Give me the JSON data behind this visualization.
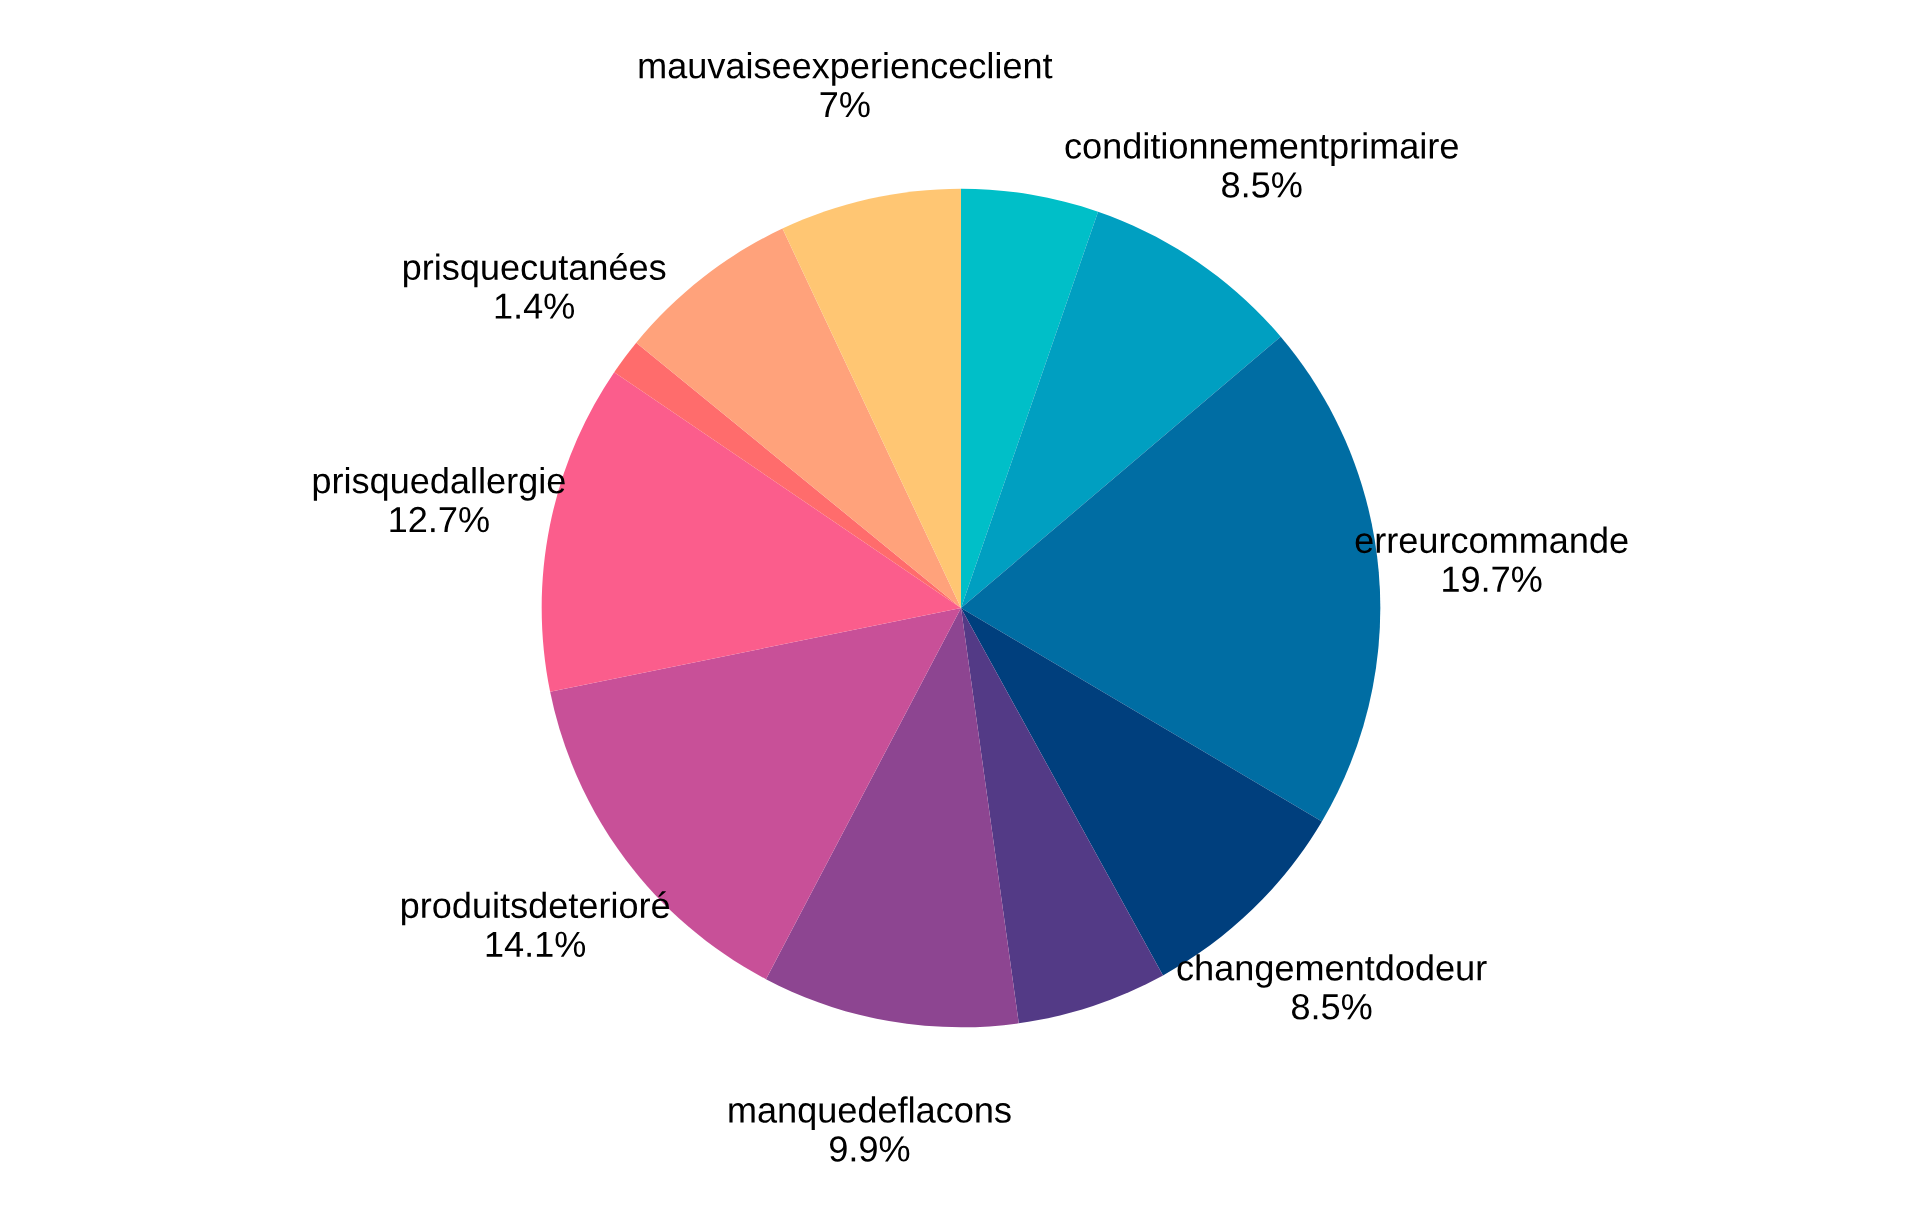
{
  "chart_data": {
    "type": "pie",
    "categories": [
      null,
      "conditionnementprimaire",
      "erreurcommande",
      "changementdodeur",
      null,
      "manquedeflacons",
      "produitsdeterioré",
      "prisquedallergie",
      "prisquecutanées",
      null,
      "mauvaiseexperienceclient"
    ],
    "values": [
      5.3,
      8.5,
      19.7,
      8.5,
      5.8,
      9.9,
      14.1,
      12.7,
      1.4,
      7.1,
      7
    ],
    "value_labels": [
      null,
      "8.5%",
      "19.7%",
      "8.5%",
      null,
      "9.9%",
      "14.1%",
      "12.7%",
      "1.4%",
      null,
      "7%"
    ],
    "colors": [
      "#00bfc8",
      "#009fc1",
      "#006da3",
      "#003f7d",
      "#533a86",
      "#8d4591",
      "#c85098",
      "#fb5d8c",
      "#ff6c6c",
      "#ffa27b",
      "#ffc673"
    ]
  }
}
